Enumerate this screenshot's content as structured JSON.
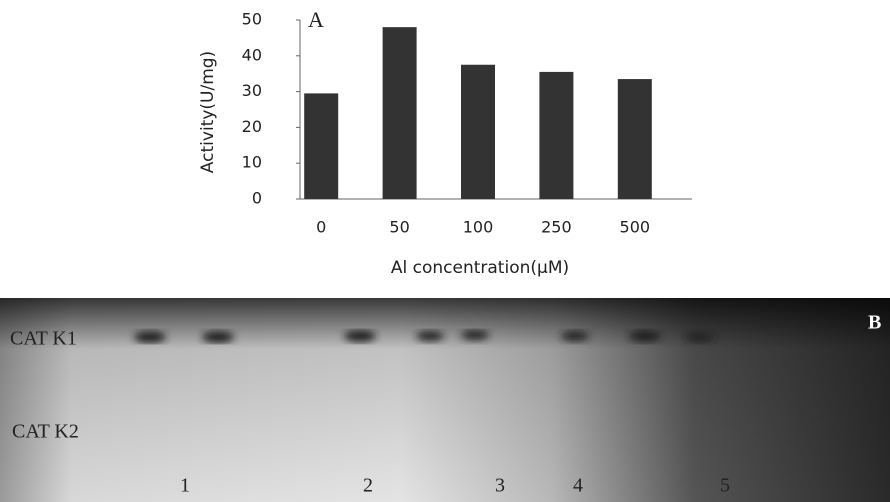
{
  "chart_data": {
    "type": "bar",
    "panel_label": "A",
    "x_label": "Al concentration(μM)",
    "y_label": "Activity(U/mg)",
    "categories": [
      "0",
      "50",
      "100",
      "250",
      "500"
    ],
    "values": [
      29.5,
      48,
      37.5,
      35.5,
      33.5
    ],
    "color": "#333333",
    "ylim": [
      0,
      50
    ],
    "yticks": [
      0,
      10,
      20,
      30,
      40,
      50
    ]
  },
  "gel": {
    "panel_label": "B",
    "bands": [
      "CAT K1",
      "CAT K2"
    ],
    "lanes": [
      "1",
      "2",
      "3",
      "4",
      "5"
    ]
  }
}
